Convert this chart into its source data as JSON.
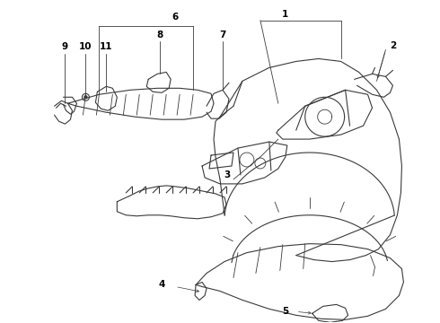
{
  "background_color": "#ffffff",
  "line_color": "#3a3a3a",
  "label_color": "#000000",
  "label_fontsize": 7.5,
  "fig_width": 4.9,
  "fig_height": 3.6,
  "dpi": 100
}
